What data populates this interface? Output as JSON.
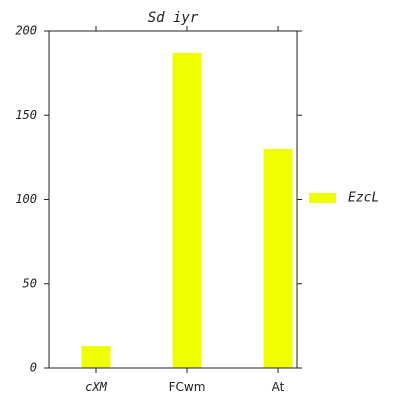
{
  "chart_data": {
    "type": "bar",
    "title": "Sd iyr",
    "xlabel": "",
    "ylabel": "",
    "categories": [
      "cXM",
      "FCwm",
      "At"
    ],
    "series": [
      {
        "name": "EzcL",
        "color": "#f0ff00",
        "values": [
          13,
          187,
          130
        ]
      }
    ],
    "ylim": [
      0,
      200
    ],
    "yticks": [
      "0",
      "50",
      "100",
      "150",
      "200"
    ],
    "grid": false,
    "legend_position": "right"
  }
}
